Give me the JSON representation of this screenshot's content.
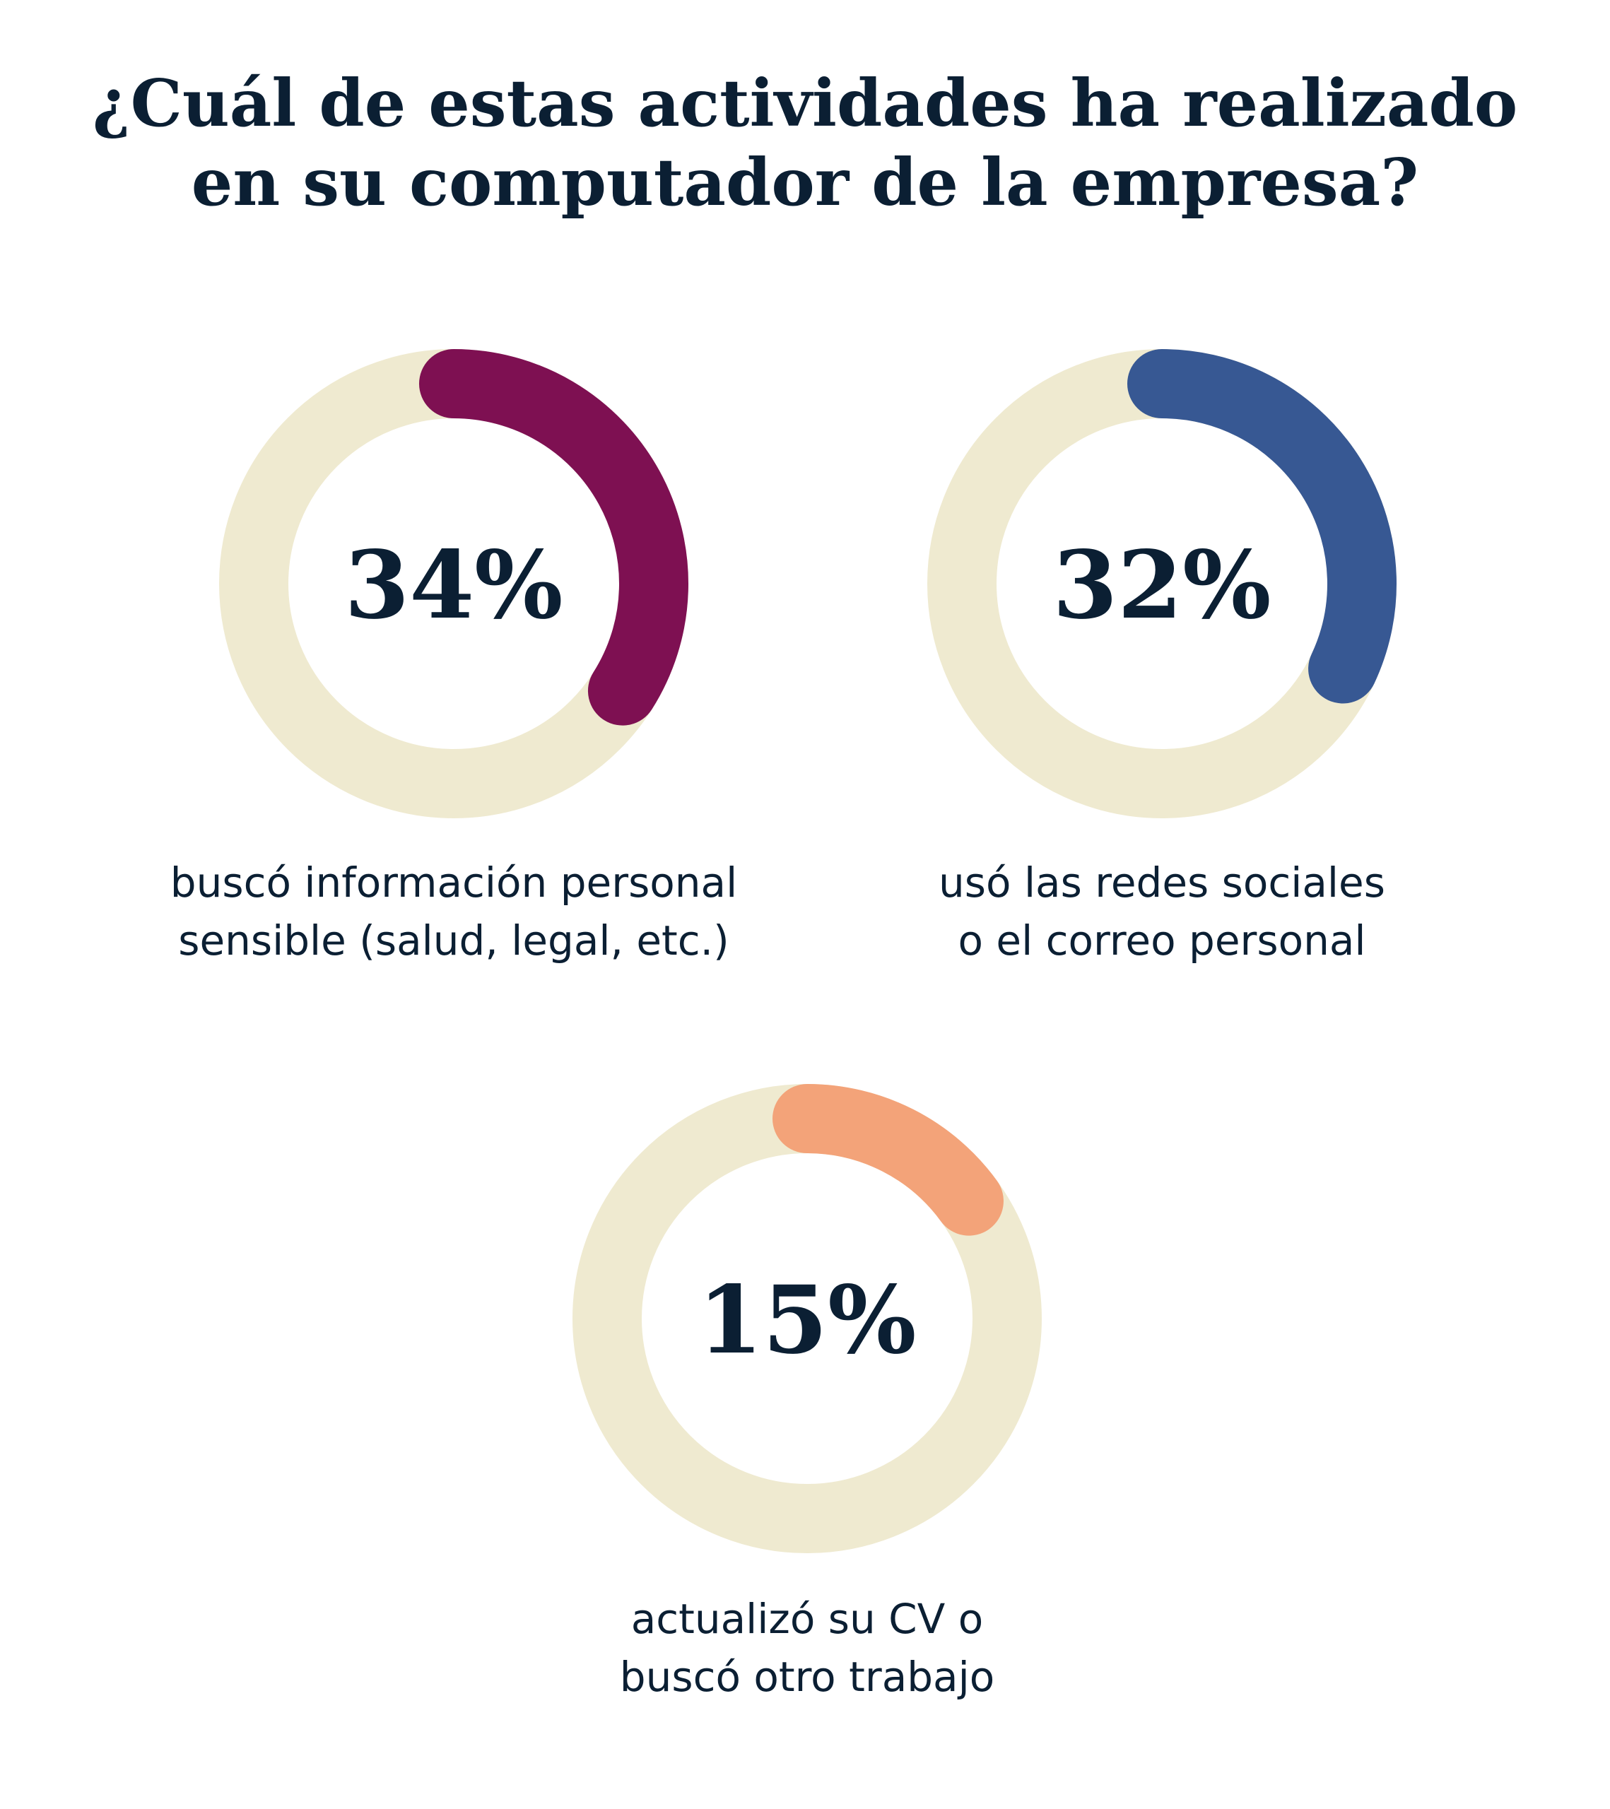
{
  "title": {
    "line1": "¿Cuál de estas actividades ha realizado",
    "line2": "en su computador de la empresa?"
  },
  "colors": {
    "track": "#EFEAD0",
    "text": "#0B1F33"
  },
  "chart_data": {
    "type": "donut",
    "max": 100,
    "items": [
      {
        "value": 34,
        "value_label": "34%",
        "color": "#7E1052",
        "label_lines": [
          "buscó información personal",
          "sensible (salud, legal, etc.)"
        ]
      },
      {
        "value": 32,
        "value_label": "32%",
        "color": "#375893",
        "label_lines": [
          "usó las redes sociales",
          "o el correo personal"
        ]
      },
      {
        "value": 15,
        "value_label": "15%",
        "color": "#F3A379",
        "label_lines": [
          "actualizó su CV o",
          "buscó otro trabajo"
        ]
      }
    ]
  }
}
